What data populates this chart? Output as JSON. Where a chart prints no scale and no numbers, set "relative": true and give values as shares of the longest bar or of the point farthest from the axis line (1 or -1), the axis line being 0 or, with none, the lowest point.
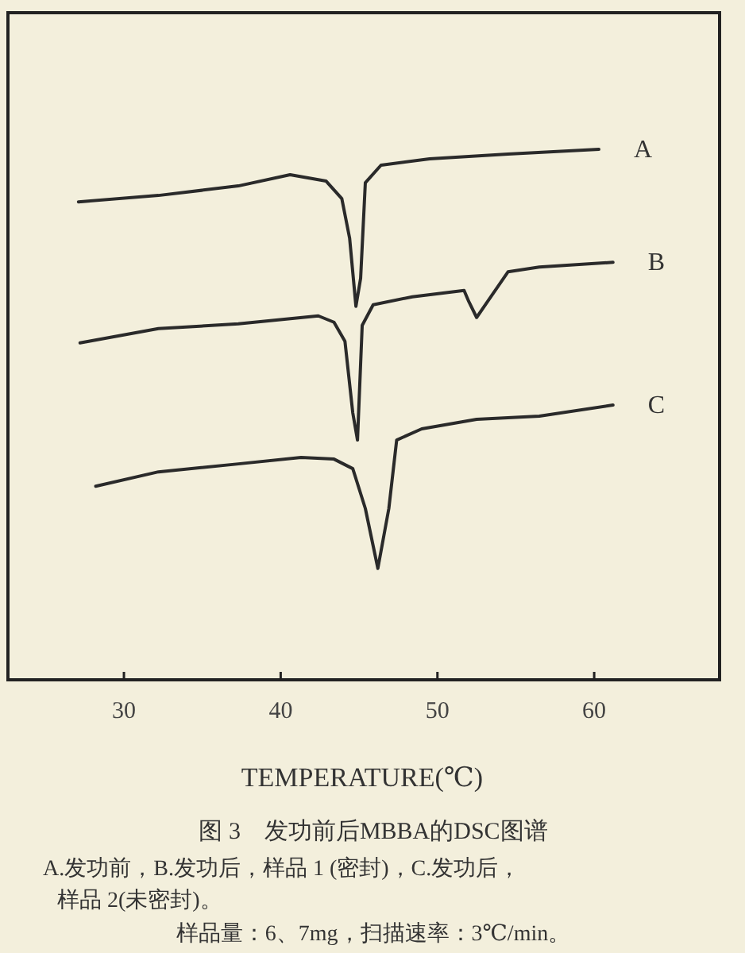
{
  "chart_data": {
    "type": "line",
    "relative": true,
    "xlabel": "TEMPERATURE(℃)",
    "title": "图 3　发功前后MBBA的DSC图谱",
    "xlim": [
      22.6,
      68
    ],
    "xticks": [
      30,
      40,
      50,
      60
    ],
    "grid": false,
    "marker": "none",
    "line_style": "solid",
    "annotations": [
      "A.发功前，B.发功后，样品 1 (密封)，C.发功后，",
      "样品 2(未密封)。",
      "样品量：6、7mg，扫描速率：3℃/min。"
    ],
    "series": [
      {
        "name": "A",
        "color": "#2a2a2a",
        "x": [
          27.1,
          32.2,
          37.3,
          40.6,
          42.9,
          43.9,
          44.4,
          44.8,
          45.1,
          45.4,
          46.4,
          49.5,
          54.5,
          60.3
        ],
        "values": [
          0.901,
          0.913,
          0.931,
          0.952,
          0.94,
          0.907,
          0.832,
          0.704,
          0.757,
          0.937,
          0.97,
          0.982,
          0.991,
          1.0
        ]
      },
      {
        "name": "B",
        "color": "#2a2a2a",
        "x": [
          27.2,
          32.2,
          37.3,
          42.4,
          43.4,
          44.1,
          44.6,
          44.9,
          45.2,
          45.9,
          48.4,
          51.7,
          52.0,
          52.5,
          53.2,
          54.5,
          56.5,
          61.2
        ],
        "values": [
          0.635,
          0.662,
          0.671,
          0.686,
          0.674,
          0.638,
          0.503,
          0.452,
          0.668,
          0.707,
          0.722,
          0.734,
          0.713,
          0.683,
          0.713,
          0.769,
          0.778,
          0.787
        ]
      },
      {
        "name": "C",
        "color": "#2a2a2a",
        "x": [
          28.2,
          32.2,
          37.3,
          41.3,
          43.4,
          44.6,
          45.4,
          46.2,
          46.9,
          47.4,
          49.0,
          52.5,
          56.5,
          61.2
        ],
        "values": [
          0.365,
          0.392,
          0.407,
          0.419,
          0.416,
          0.398,
          0.323,
          0.21,
          0.323,
          0.452,
          0.473,
          0.491,
          0.497,
          0.518
        ]
      }
    ]
  }
}
